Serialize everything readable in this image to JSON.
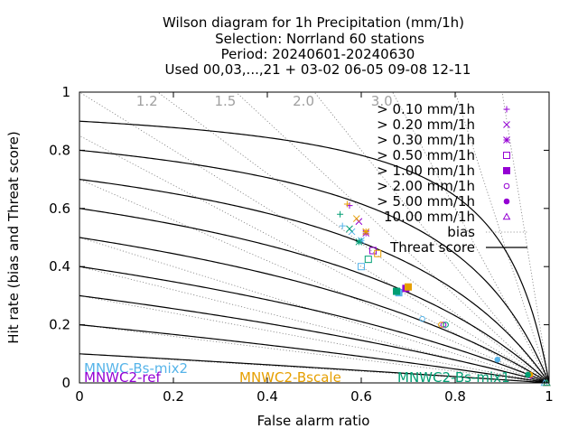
{
  "chart_data": {
    "type": "scatter",
    "title_lines": [
      "Wilson diagram  for 1h Precipitation (mm/1h)",
      "Selection: Norrland     60 stations",
      "Period: 20240601-20240630",
      "Used 00,03,...,21 + 03-02 06-05 09-08 12-11"
    ],
    "xlabel": "False alarm ratio",
    "ylabel": "Hit rate (bias and Threat score)",
    "xlim": [
      0,
      1
    ],
    "ylim": [
      0,
      1
    ],
    "xticks": [
      "0",
      "0.2",
      "0.4",
      "0.6",
      "0.8",
      "1"
    ],
    "yticks": [
      "0",
      "0.2",
      "0.4",
      "0.6",
      "0.8",
      "1"
    ],
    "bias_values": [
      0.1,
      0.2,
      0.3,
      0.4,
      0.5,
      0.7,
      0.85,
      1.0,
      1.2,
      1.5,
      2.0,
      3.0,
      5.0,
      10.0
    ],
    "bias_labels": [
      {
        "bias": 1.2,
        "text": "1.2"
      },
      {
        "bias": 1.5,
        "text": "1.5"
      },
      {
        "bias": 2.0,
        "text": "2.0"
      },
      {
        "bias": 3.0,
        "text": "3.0"
      }
    ],
    "threat_scores": [
      0.1,
      0.2,
      0.3,
      0.4,
      0.5,
      0.6,
      0.7,
      0.8,
      0.9
    ],
    "thresholds": [
      {
        "label": "> 0.10 mm/1h",
        "marker": "plus"
      },
      {
        "label": "> 0.20 mm/1h",
        "marker": "cross"
      },
      {
        "label": "> 0.30 mm/1h",
        "marker": "star"
      },
      {
        "label": "> 0.50 mm/1h",
        "marker": "square"
      },
      {
        "label": "> 1.00 mm/1h",
        "marker": "filled-square"
      },
      {
        "label": "> 2.00 mm/1h",
        "marker": "circle"
      },
      {
        "label": "> 5.00 mm/1h",
        "marker": "filled-circle"
      },
      {
        "label": "10.00 mm/1h",
        "marker": "triangle"
      }
    ],
    "legend_bias_label": "bias",
    "legend_ts_label": "Threat score",
    "legend_marker_color": "#9400d3",
    "series": [
      {
        "name": "MNWC-Bs-mix2",
        "color": "#56b4e9",
        "points": [
          [
            0.56,
            0.54
          ],
          [
            0.58,
            0.52
          ],
          [
            0.6,
            0.49
          ],
          [
            0.6,
            0.4
          ],
          [
            0.68,
            0.31
          ],
          [
            0.73,
            0.22
          ],
          [
            0.89,
            0.08
          ],
          [
            0.99,
            0.0
          ]
        ]
      },
      {
        "name": "MNWC2-ref",
        "color": "#9400d3",
        "points": [
          [
            0.575,
            0.61
          ],
          [
            0.595,
            0.555
          ],
          [
            0.61,
            0.515
          ],
          [
            0.625,
            0.455
          ],
          [
            0.695,
            0.325
          ],
          [
            0.775,
            0.2
          ],
          [
            0.96,
            0.025
          ],
          [
            0.995,
            0.0
          ]
        ]
      },
      {
        "name": "MNWC2-Bscale",
        "color": "#e69f00",
        "points": [
          [
            0.57,
            0.615
          ],
          [
            0.59,
            0.565
          ],
          [
            0.61,
            0.52
          ],
          [
            0.635,
            0.445
          ],
          [
            0.7,
            0.33
          ],
          [
            0.77,
            0.2
          ],
          [
            0.96,
            0.028
          ],
          [
            0.995,
            0.0
          ]
        ]
      },
      {
        "name": "MNWC2-Bs-mix1",
        "color": "#009e73",
        "points": [
          [
            0.555,
            0.58
          ],
          [
            0.575,
            0.53
          ],
          [
            0.595,
            0.485
          ],
          [
            0.615,
            0.425
          ],
          [
            0.675,
            0.315
          ],
          [
            0.78,
            0.2
          ],
          [
            0.955,
            0.028
          ],
          [
            0.995,
            0.0
          ]
        ]
      }
    ]
  }
}
